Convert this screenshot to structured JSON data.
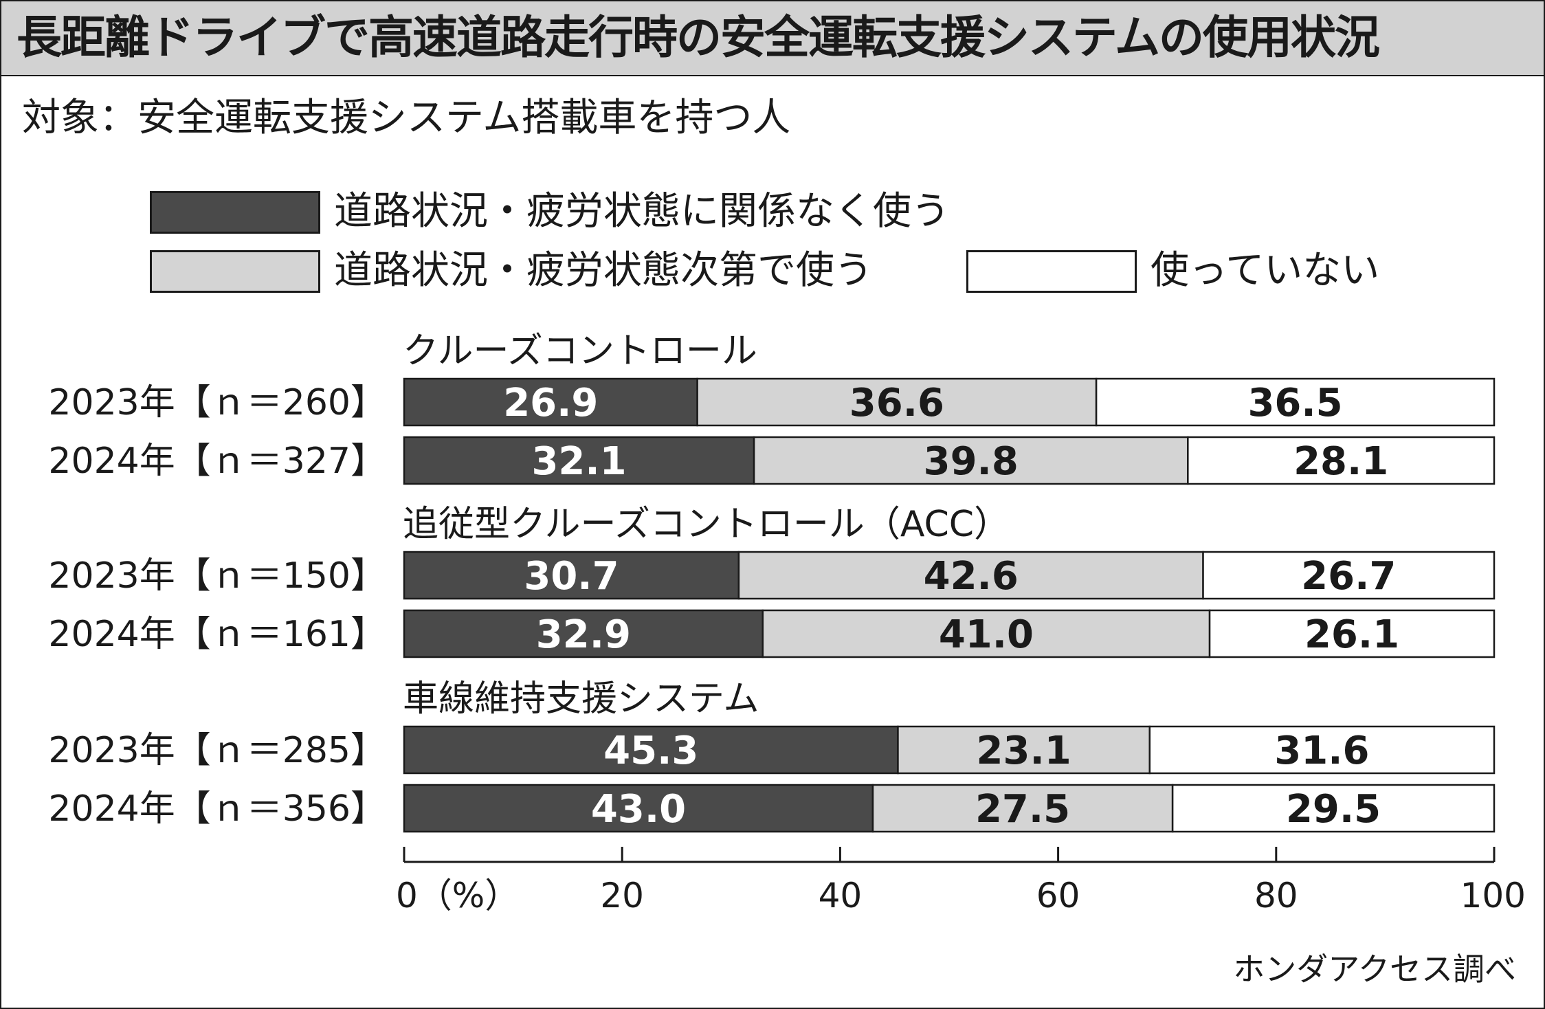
{
  "title": "長距離ドライブで高速道路走行時の安全運転支援システムの使用状況",
  "subtitle": "対象：安全運転支援システム搭載車を持つ人",
  "source": "ホンダアクセス調べ",
  "colors": {
    "dark": "#4a4a4a",
    "light": "#d4d4d4",
    "white": "#ffffff",
    "ink": "#1a1a1a",
    "title_bg": "#d2d2d2"
  },
  "legend": [
    {
      "label": "道路状況・疲労状態に関係なく使う",
      "color": "#4a4a4a"
    },
    {
      "label": "道路状況・疲労状態次第で使う",
      "color": "#d4d4d4"
    },
    {
      "label": "使っていない",
      "color": "#ffffff"
    }
  ],
  "chart_data": {
    "type": "bar",
    "orientation": "horizontal",
    "stacked": true,
    "unit": "%",
    "xlim": [
      0,
      100
    ],
    "x_ticks": [
      0,
      20,
      40,
      60,
      80,
      100
    ],
    "x_tick_labels": [
      "0（%）",
      "20",
      "40",
      "60",
      "80",
      "100"
    ],
    "series_names": [
      "道路状況・疲労状態に関係なく使う",
      "道路状況・疲労状態次第で使う",
      "使っていない"
    ],
    "groups": [
      {
        "name": "クルーズコントロール",
        "rows": [
          {
            "label": "2023年【ｎ＝260】",
            "values": [
              26.9,
              36.6,
              36.5
            ],
            "value_labels": [
              "26.9",
              "36.6",
              "36.5"
            ]
          },
          {
            "label": "2024年【ｎ＝327】",
            "values": [
              32.1,
              39.8,
              28.1
            ],
            "value_labels": [
              "32.1",
              "39.8",
              "28.1"
            ]
          }
        ]
      },
      {
        "name": "追従型クルーズコントロール（ACC）",
        "rows": [
          {
            "label": "2023年【ｎ＝150】",
            "values": [
              30.7,
              42.6,
              26.7
            ],
            "value_labels": [
              "30.7",
              "42.6",
              "26.7"
            ]
          },
          {
            "label": "2024年【ｎ＝161】",
            "values": [
              32.9,
              41.0,
              26.1
            ],
            "value_labels": [
              "32.9",
              "41.0",
              "26.1"
            ]
          }
        ]
      },
      {
        "name": "車線維持支援システム",
        "rows": [
          {
            "label": "2023年【ｎ＝285】",
            "values": [
              45.3,
              23.1,
              31.6
            ],
            "value_labels": [
              "45.3",
              "23.1",
              "31.6"
            ]
          },
          {
            "label": "2024年【ｎ＝356】",
            "values": [
              43.0,
              27.5,
              29.5
            ],
            "value_labels": [
              "43.0",
              "27.5",
              "29.5"
            ]
          }
        ]
      }
    ]
  }
}
